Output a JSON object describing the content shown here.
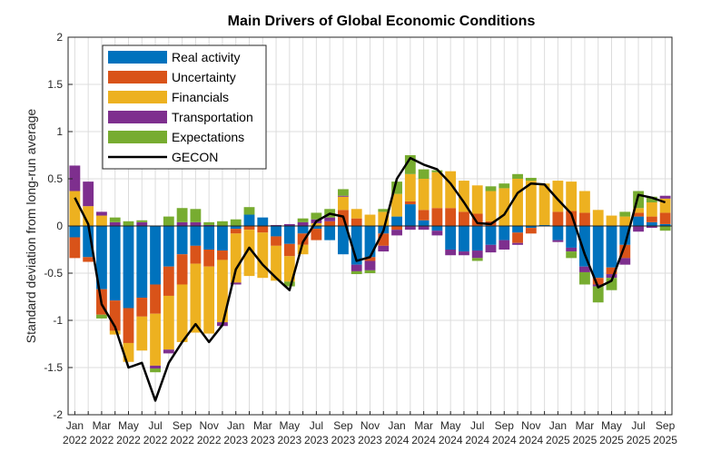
{
  "chart_data": {
    "type": "bar",
    "stacked": true,
    "title": "Main Drivers of Global Economic Conditions",
    "xlabel": "",
    "ylabel": "Standard deviation from long-run average",
    "ylim": [
      -2,
      2
    ],
    "yticks": [
      "-2",
      "-1.5",
      "-1",
      "-0.5",
      "0",
      "0.5",
      "1",
      "1.5",
      "2"
    ],
    "grid": true,
    "legend_position": "top-left",
    "x_tick_labels": [
      {
        "m": "Jan",
        "y": "2022"
      },
      {
        "m": "Mar",
        "y": "2022"
      },
      {
        "m": "May",
        "y": "2022"
      },
      {
        "m": "Jul",
        "y": "2022"
      },
      {
        "m": "Sep",
        "y": "2022"
      },
      {
        "m": "Nov",
        "y": "2022"
      },
      {
        "m": "Jan",
        "y": "2023"
      },
      {
        "m": "Mar",
        "y": "2023"
      },
      {
        "m": "May",
        "y": "2023"
      },
      {
        "m": "Jul",
        "y": "2023"
      },
      {
        "m": "Sep",
        "y": "2023"
      },
      {
        "m": "Nov",
        "y": "2023"
      },
      {
        "m": "Jan",
        "y": "2024"
      },
      {
        "m": "Mar",
        "y": "2024"
      },
      {
        "m": "May",
        "y": "2024"
      },
      {
        "m": "Jul",
        "y": "2024"
      },
      {
        "m": "Sep",
        "y": "2024"
      },
      {
        "m": "Nov",
        "y": "2024"
      },
      {
        "m": "Jan",
        "y": "2025"
      },
      {
        "m": "Mar",
        "y": "2025"
      },
      {
        "m": "May",
        "y": "2025"
      },
      {
        "m": "Jul",
        "y": "2025"
      },
      {
        "m": "Sep",
        "y": "2025"
      }
    ],
    "n_months": 45,
    "series": [
      {
        "name": "Real activity",
        "color": "#0072BD",
        "values": [
          -0.12,
          -0.33,
          -0.67,
          -0.79,
          -0.87,
          -0.76,
          -0.62,
          -0.43,
          -0.3,
          -0.21,
          -0.25,
          -0.26,
          -0.03,
          0.12,
          0.09,
          -0.11,
          -0.19,
          -0.08,
          -0.03,
          -0.15,
          -0.3,
          -0.41,
          -0.33,
          -0.08,
          0.1,
          0.23,
          0.06,
          -0.05,
          -0.25,
          -0.27,
          -0.26,
          -0.2,
          -0.15,
          -0.07,
          -0.02,
          0.01,
          -0.15,
          -0.23,
          -0.43,
          -0.55,
          -0.44,
          -0.2,
          0.1,
          0.04,
          0.02
        ]
      },
      {
        "name": "Uncertainty",
        "color": "#D95319",
        "values": [
          -0.22,
          -0.05,
          -0.27,
          -0.32,
          -0.37,
          -0.2,
          -0.31,
          -0.31,
          -0.32,
          -0.19,
          -0.18,
          -0.1,
          -0.05,
          -0.04,
          -0.07,
          -0.1,
          -0.13,
          -0.12,
          -0.12,
          0.05,
          0.17,
          0.08,
          -0.04,
          -0.13,
          -0.04,
          0.03,
          0.11,
          0.19,
          0.19,
          0.15,
          0.13,
          0.05,
          0.0,
          -0.11,
          -0.06,
          0.0,
          0.15,
          0.16,
          0.14,
          -0.07,
          -0.07,
          -0.14,
          0.04,
          0.06,
          0.12
        ]
      },
      {
        "name": "Financials",
        "color": "#EDB120",
        "values": [
          0.37,
          0.21,
          0.11,
          -0.04,
          -0.2,
          -0.36,
          -0.55,
          -0.57,
          -0.61,
          -0.73,
          -0.71,
          -0.66,
          -0.52,
          -0.49,
          -0.48,
          -0.37,
          -0.27,
          -0.1,
          0.03,
          0.0,
          0.14,
          0.1,
          0.12,
          0.15,
          0.24,
          0.29,
          0.33,
          0.38,
          0.39,
          0.33,
          0.3,
          0.32,
          0.4,
          0.5,
          0.48,
          0.44,
          0.33,
          0.31,
          0.23,
          0.17,
          0.11,
          0.1,
          0.05,
          0.15,
          0.15
        ]
      },
      {
        "name": "Transportation",
        "color": "#7E2F8E",
        "values": [
          0.27,
          0.26,
          0.04,
          0.04,
          0.0,
          0.04,
          -0.03,
          -0.04,
          0.04,
          0.04,
          0.01,
          -0.04,
          -0.02,
          0.0,
          0.0,
          0.01,
          0.02,
          0.04,
          0.04,
          0.04,
          0.01,
          -0.07,
          -0.1,
          -0.06,
          -0.06,
          -0.04,
          -0.04,
          -0.05,
          -0.06,
          -0.04,
          -0.08,
          -0.08,
          -0.1,
          -0.02,
          0.0,
          0.0,
          -0.02,
          -0.04,
          -0.06,
          -0.02,
          -0.04,
          -0.07,
          -0.06,
          -0.02,
          0.03
        ]
      },
      {
        "name": "Expectations",
        "color": "#77AC30",
        "values": [
          0.0,
          0.0,
          -0.04,
          0.05,
          0.05,
          0.02,
          -0.04,
          0.1,
          0.15,
          0.14,
          0.03,
          0.05,
          0.07,
          0.08,
          0.0,
          0.0,
          -0.05,
          0.04,
          0.07,
          0.09,
          0.07,
          -0.03,
          -0.03,
          0.03,
          0.13,
          0.2,
          0.1,
          0.02,
          0.0,
          0.0,
          -0.03,
          0.05,
          0.05,
          0.05,
          0.03,
          0.0,
          0.0,
          -0.07,
          -0.13,
          -0.17,
          -0.13,
          0.05,
          0.18,
          0.06,
          -0.05
        ]
      }
    ],
    "line": {
      "name": "GECON",
      "color": "#000000",
      "values": [
        0.3,
        0.02,
        -0.83,
        -1.07,
        -1.5,
        -1.45,
        -1.85,
        -1.45,
        -1.23,
        -1.04,
        -1.23,
        -1.05,
        -0.46,
        -0.23,
        -0.41,
        -0.55,
        -0.68,
        -0.17,
        0.05,
        0.13,
        0.1,
        -0.37,
        -0.33,
        -0.05,
        0.5,
        0.72,
        0.65,
        0.6,
        0.45,
        0.25,
        0.03,
        0.02,
        0.12,
        0.35,
        0.45,
        0.44,
        0.28,
        0.13,
        -0.3,
        -0.65,
        -0.58,
        -0.2,
        0.33,
        0.3,
        0.25
      ]
    }
  }
}
